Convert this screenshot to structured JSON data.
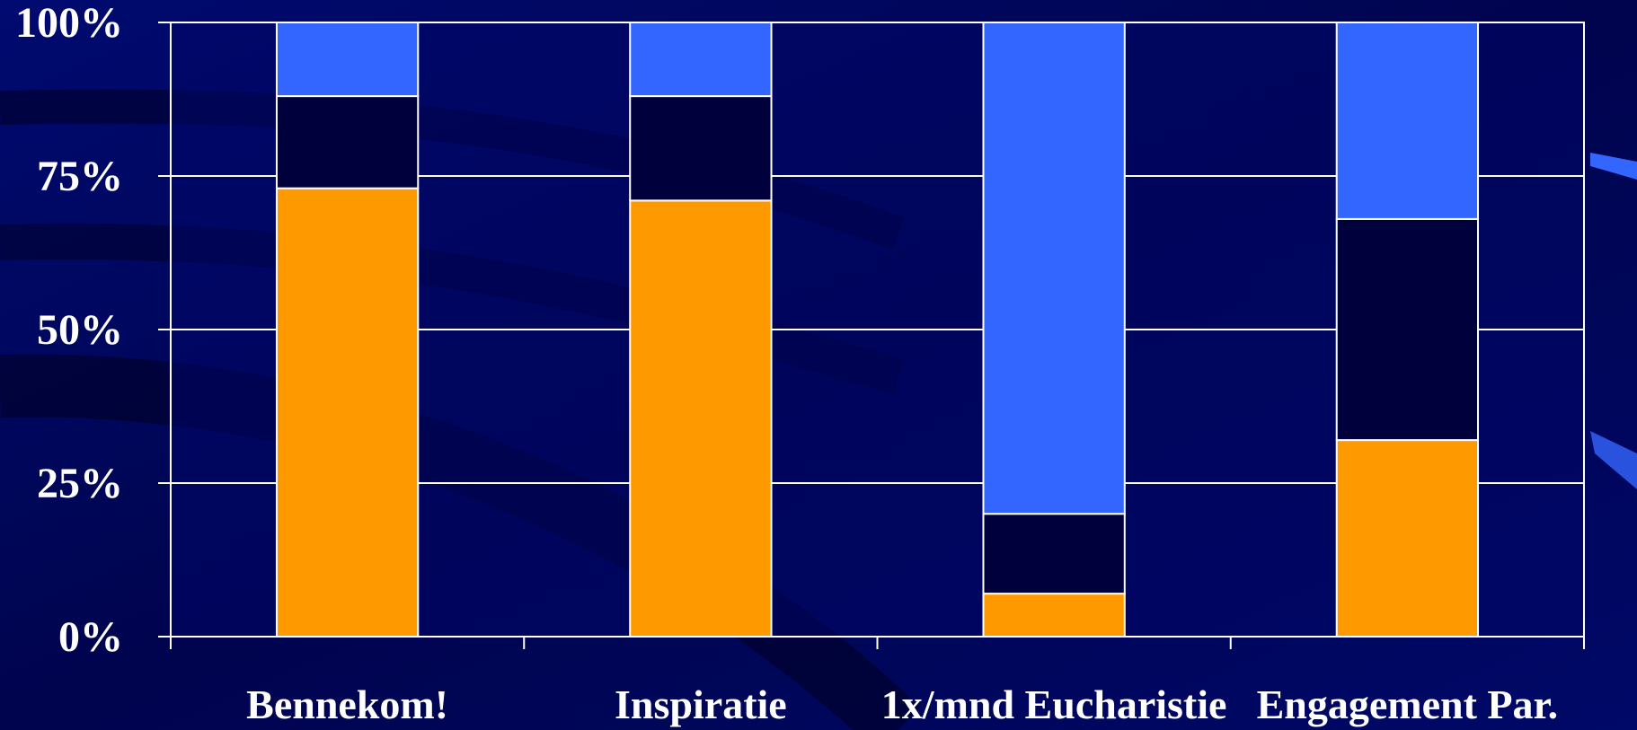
{
  "chart_data": {
    "type": "bar",
    "stacked": true,
    "categories": [
      "Bennekom!",
      "Inspiratie",
      "1x/mnd Eucharistie",
      "Engagement Par."
    ],
    "series": [
      {
        "values": [
          73,
          71,
          7,
          32
        ],
        "color": "#ff9900"
      },
      {
        "values": [
          15,
          17,
          13,
          36
        ],
        "color": "#00003c"
      },
      {
        "values": [
          12,
          12,
          80,
          32
        ],
        "color": "#3366ff"
      }
    ],
    "y_ticks": [
      "0%",
      "25%",
      "50%",
      "75%",
      "100%"
    ],
    "ylim": [
      0,
      100
    ],
    "grid": true,
    "legend": "none",
    "colors": {
      "background": "#00055a",
      "plot_background": "#000566",
      "grid": "#ffffff",
      "text": "#ffffff"
    }
  }
}
